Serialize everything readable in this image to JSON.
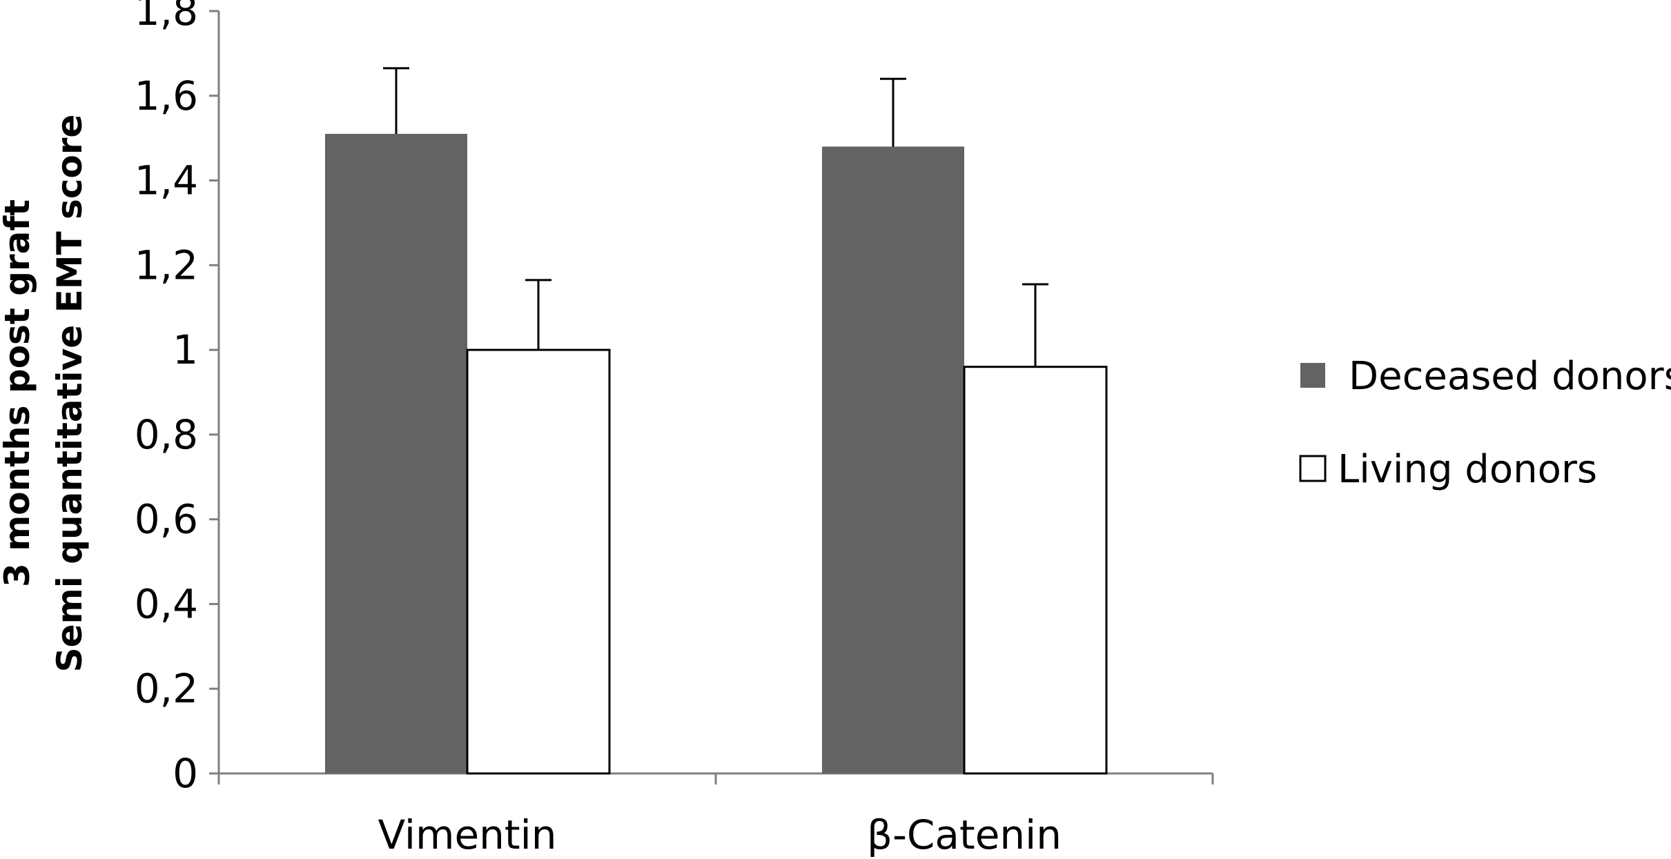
{
  "chart_data": {
    "type": "bar",
    "title": "",
    "xlabel": "",
    "ylabel": [
      "3 months post graft",
      "Semi quantitative EMT score"
    ],
    "ylim": [
      0,
      1.8
    ],
    "yticks": [
      "0",
      "0,2",
      "0,4",
      "0,6",
      "0,8",
      "1",
      "1,2",
      "1,4",
      "1,6",
      "1,8"
    ],
    "ytick_values": [
      0,
      0.2,
      0.4,
      0.6,
      0.8,
      1.0,
      1.2,
      1.4,
      1.6,
      1.8
    ],
    "categories": [
      "Vimentin",
      "β-Catenin"
    ],
    "series": [
      {
        "name": "Deceased donors",
        "values": [
          1.51,
          1.48
        ],
        "errors": [
          0.155,
          0.16
        ],
        "color": "#636363"
      },
      {
        "name": "Living donors",
        "values": [
          1.0,
          0.96
        ],
        "errors": [
          0.165,
          0.195
        ],
        "color": "#ffffff"
      }
    ],
    "grid": false,
    "legend_position": "right"
  }
}
